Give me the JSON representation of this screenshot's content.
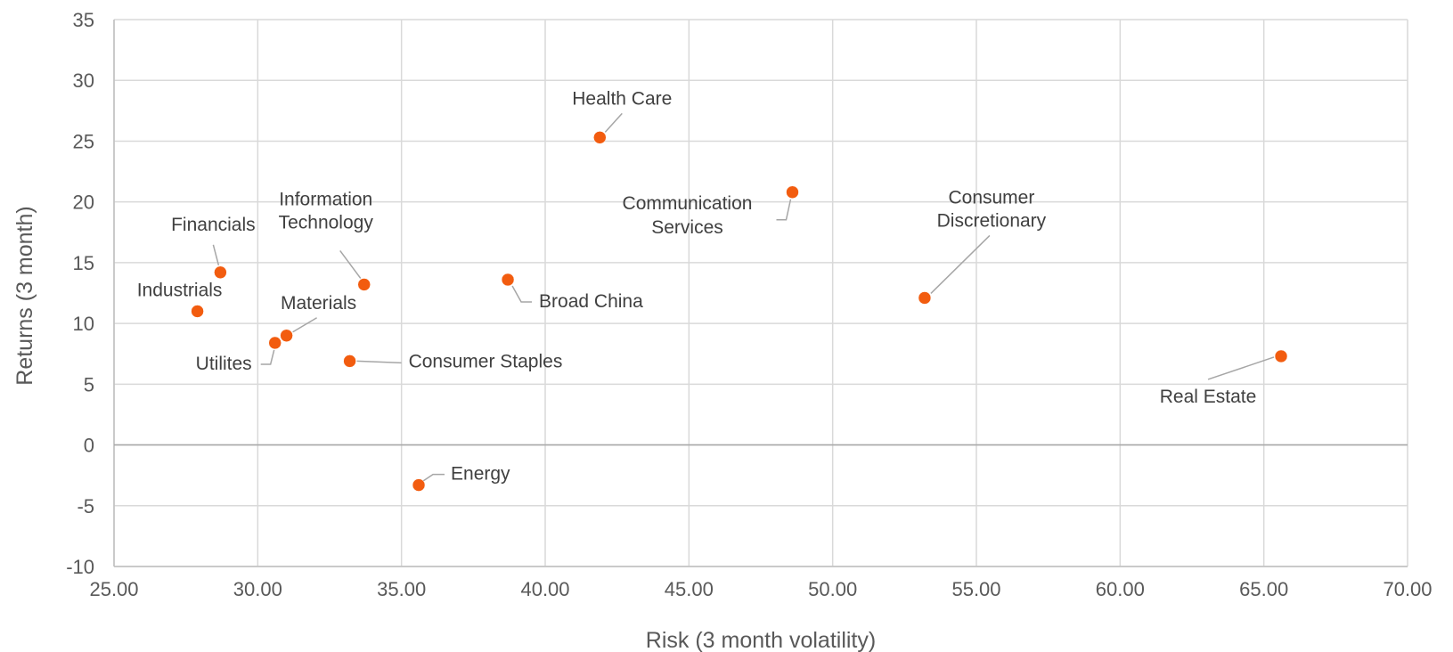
{
  "chart_data": {
    "type": "scatter",
    "xlabel": "Risk (3 month volatility)",
    "ylabel": "Returns (3 month)",
    "xlim": [
      25,
      70
    ],
    "ylim": [
      -10,
      35
    ],
    "x_ticks": [
      "25.00",
      "30.00",
      "35.00",
      "40.00",
      "45.00",
      "50.00",
      "55.00",
      "60.00",
      "65.00",
      "70.00"
    ],
    "y_ticks": [
      "-10",
      "-5",
      "0",
      "5",
      "10",
      "15",
      "20",
      "25",
      "30",
      "35"
    ],
    "grid": true,
    "marker_color": "#F25C0F",
    "points": [
      {
        "label": "Industrials",
        "x": 27.9,
        "y": 11.0
      },
      {
        "label": "Financials",
        "x": 28.7,
        "y": 14.2
      },
      {
        "label": "Utilites",
        "x": 30.6,
        "y": 8.4
      },
      {
        "label": "Materials",
        "x": 31.0,
        "y": 9.0
      },
      {
        "label": "Consumer Staples",
        "x": 33.2,
        "y": 6.9
      },
      {
        "label": "Information Technology",
        "x": 33.7,
        "y": 13.2
      },
      {
        "label": "Energy",
        "x": 35.6,
        "y": -3.3
      },
      {
        "label": "Broad China",
        "x": 38.7,
        "y": 13.6
      },
      {
        "label": "Health Care",
        "x": 41.9,
        "y": 25.3
      },
      {
        "label": "Communication Services",
        "x": 48.6,
        "y": 20.8
      },
      {
        "label": "Consumer Discretionary",
        "x": 53.2,
        "y": 12.1
      },
      {
        "label": "Real Estate",
        "x": 65.6,
        "y": 7.3
      }
    ]
  }
}
